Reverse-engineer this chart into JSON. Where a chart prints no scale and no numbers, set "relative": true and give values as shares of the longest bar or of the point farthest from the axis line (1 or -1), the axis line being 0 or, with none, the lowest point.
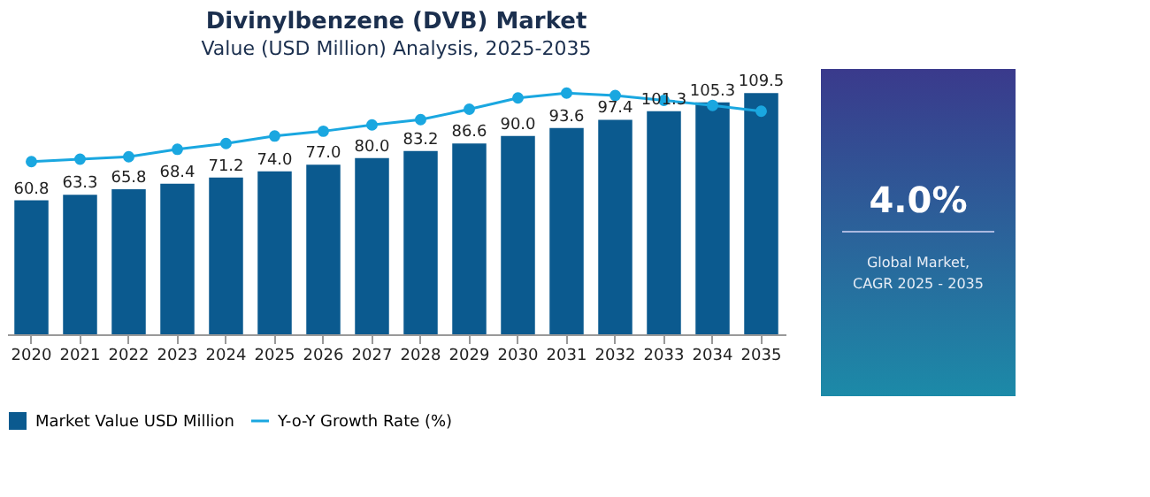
{
  "chart_data": [
    {
      "type": "bar",
      "title": "Divinylbenzene (DVB) Market",
      "subtitle": "Value (USD Million) Analysis, 2025-2035",
      "categories": [
        "2020",
        "2021",
        "2022",
        "2023",
        "2024",
        "2025",
        "2026",
        "2027",
        "2028",
        "2029",
        "2030",
        "2031",
        "2032",
        "2033",
        "2034",
        "2035"
      ],
      "series": [
        {
          "name": "Market Value USD Million",
          "color": "#0b5a8f",
          "values": [
            60.8,
            63.3,
            65.8,
            68.4,
            71.2,
            74.0,
            77.0,
            80.0,
            83.2,
            86.6,
            90.0,
            93.6,
            97.4,
            101.3,
            105.3,
            109.5
          ],
          "value_labels": [
            "60.8",
            "63.3",
            "65.8",
            "68.4",
            "71.2",
            "74.0",
            "77.0",
            "80.0",
            "83.2",
            "86.6",
            "90.0",
            "93.6",
            "97.4",
            "101.3",
            "105.3",
            "109.5"
          ]
        }
      ],
      "tick_labels": "x",
      "legend": "bottom"
    },
    {
      "type": "line",
      "relative": true,
      "categories": [
        "2020",
        "2021",
        "2022",
        "2023",
        "2024",
        "2025",
        "2026",
        "2027",
        "2028",
        "2029",
        "2030",
        "2031",
        "2032",
        "2033",
        "2034",
        "2035"
      ],
      "series": [
        {
          "name": "Y-o-Y Growth Rate (%)",
          "color": "#1aa7e0",
          "values": [
            0.716,
            0.726,
            0.736,
            0.767,
            0.791,
            0.822,
            0.842,
            0.868,
            0.89,
            0.933,
            0.98,
            1,
            0.99,
            0.97,
            0.949,
            0.925
          ]
        }
      ],
      "marker": "circle",
      "legend": "bottom",
      "tick_labels": false
    },
    {
      "type": "other",
      "title": "4.0%",
      "annotations": [
        "Global Market,",
        "CAGR 2025 - 2035"
      ]
    }
  ]
}
